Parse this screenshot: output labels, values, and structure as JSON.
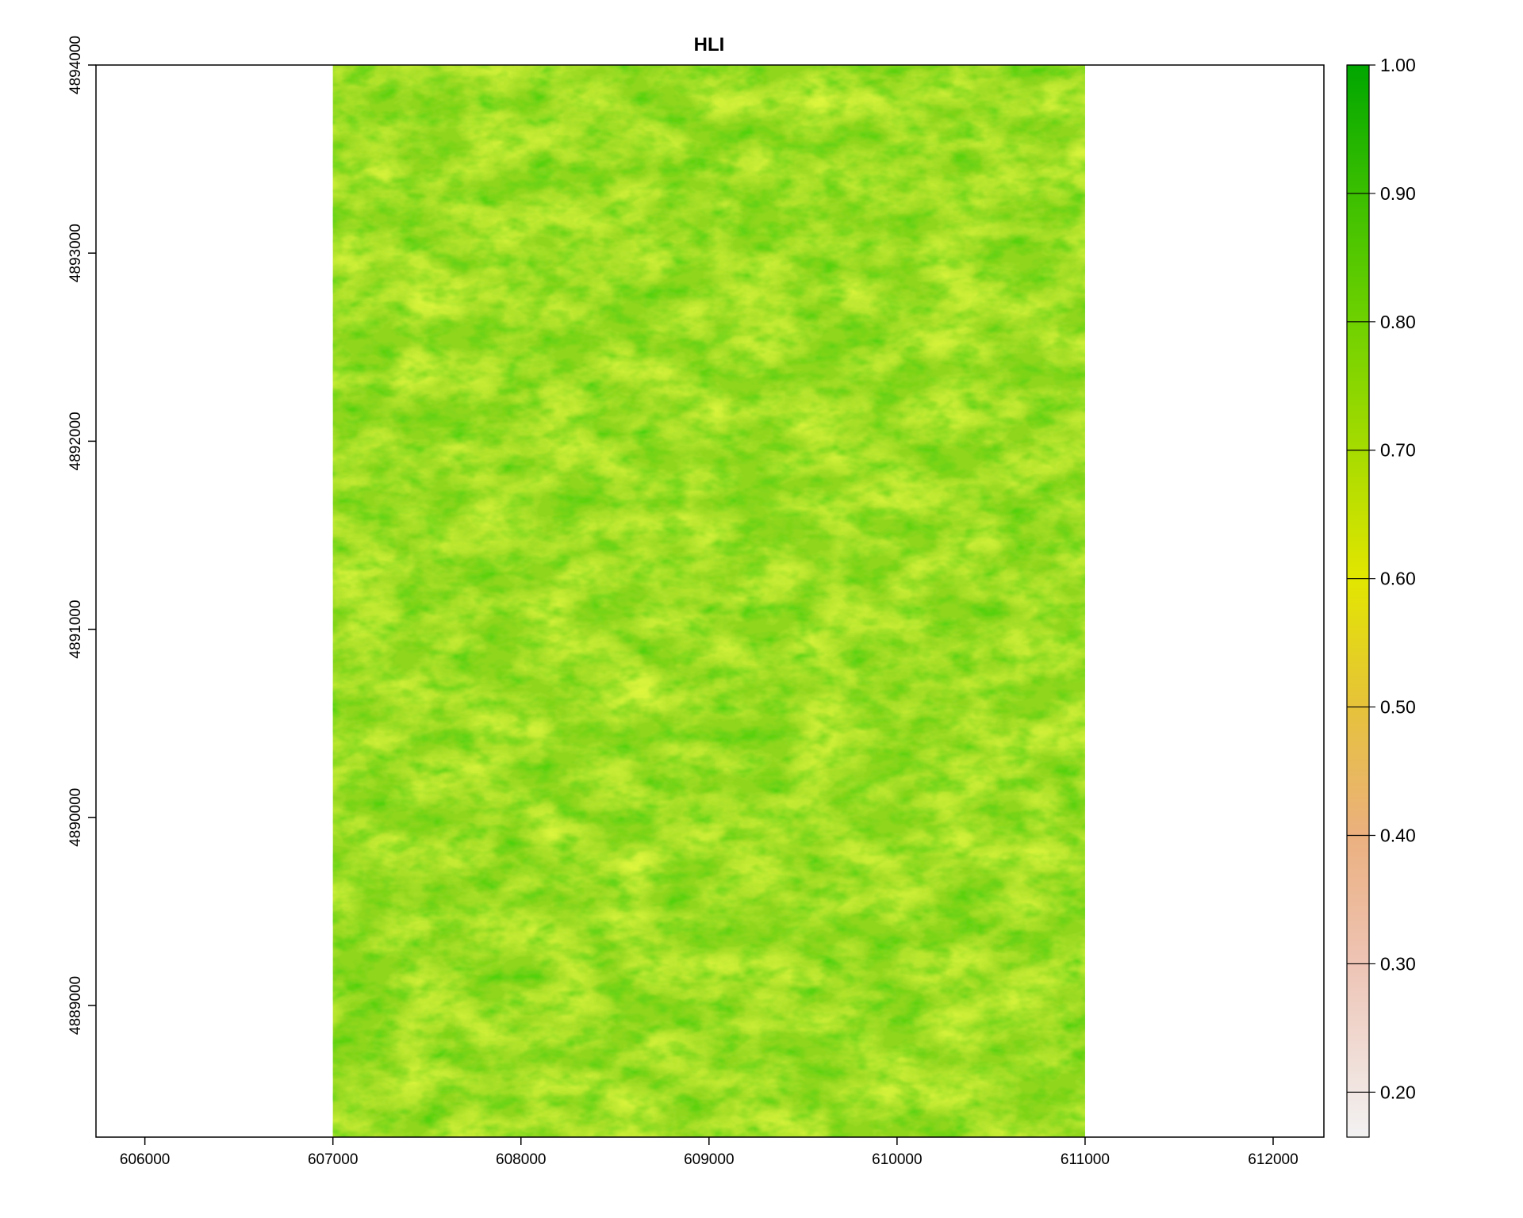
{
  "map": {
    "title": "HLI",
    "x_axis": {
      "ticks": [
        606000,
        607000,
        608000,
        609000,
        610000,
        611000,
        612000
      ],
      "labels": [
        "606000",
        "607000",
        "608000",
        "609000",
        "610000",
        "611000",
        "612000"
      ],
      "range": [
        605740,
        612270
      ]
    },
    "y_axis": {
      "ticks": [
        4889000,
        4890000,
        4891000,
        4892000,
        4893000,
        4894000
      ],
      "labels": [
        "4889000",
        "4890000",
        "4891000",
        "4892000",
        "4893000",
        "4894000"
      ],
      "range": [
        4888300,
        4894000
      ]
    },
    "raster_extent": {
      "xmin": 607000,
      "xmax": 611000,
      "ymin": 4888300,
      "ymax": 4894000
    },
    "raster_fill_color": "#8fd61c",
    "legend": {
      "ticks": [
        1.0,
        0.9,
        0.8,
        0.7,
        0.6,
        0.5,
        0.4,
        0.3,
        0.2
      ],
      "labels": [
        "1.00",
        "0.90",
        "0.80",
        "0.70",
        "0.60",
        "0.50",
        "0.40",
        "0.30",
        "0.20"
      ],
      "range": [
        0.165,
        1.0
      ],
      "colors": [
        "#f2f2f2",
        "#eec4b5",
        "#ebb07f",
        "#e6c23a",
        "#e2e600",
        "#a6db00",
        "#6fd100",
        "#3bbf00",
        "#00a600"
      ],
      "color_stops": [
        0.165,
        0.3,
        0.4,
        0.5,
        0.6,
        0.7,
        0.8,
        0.9,
        1.0
      ]
    }
  }
}
